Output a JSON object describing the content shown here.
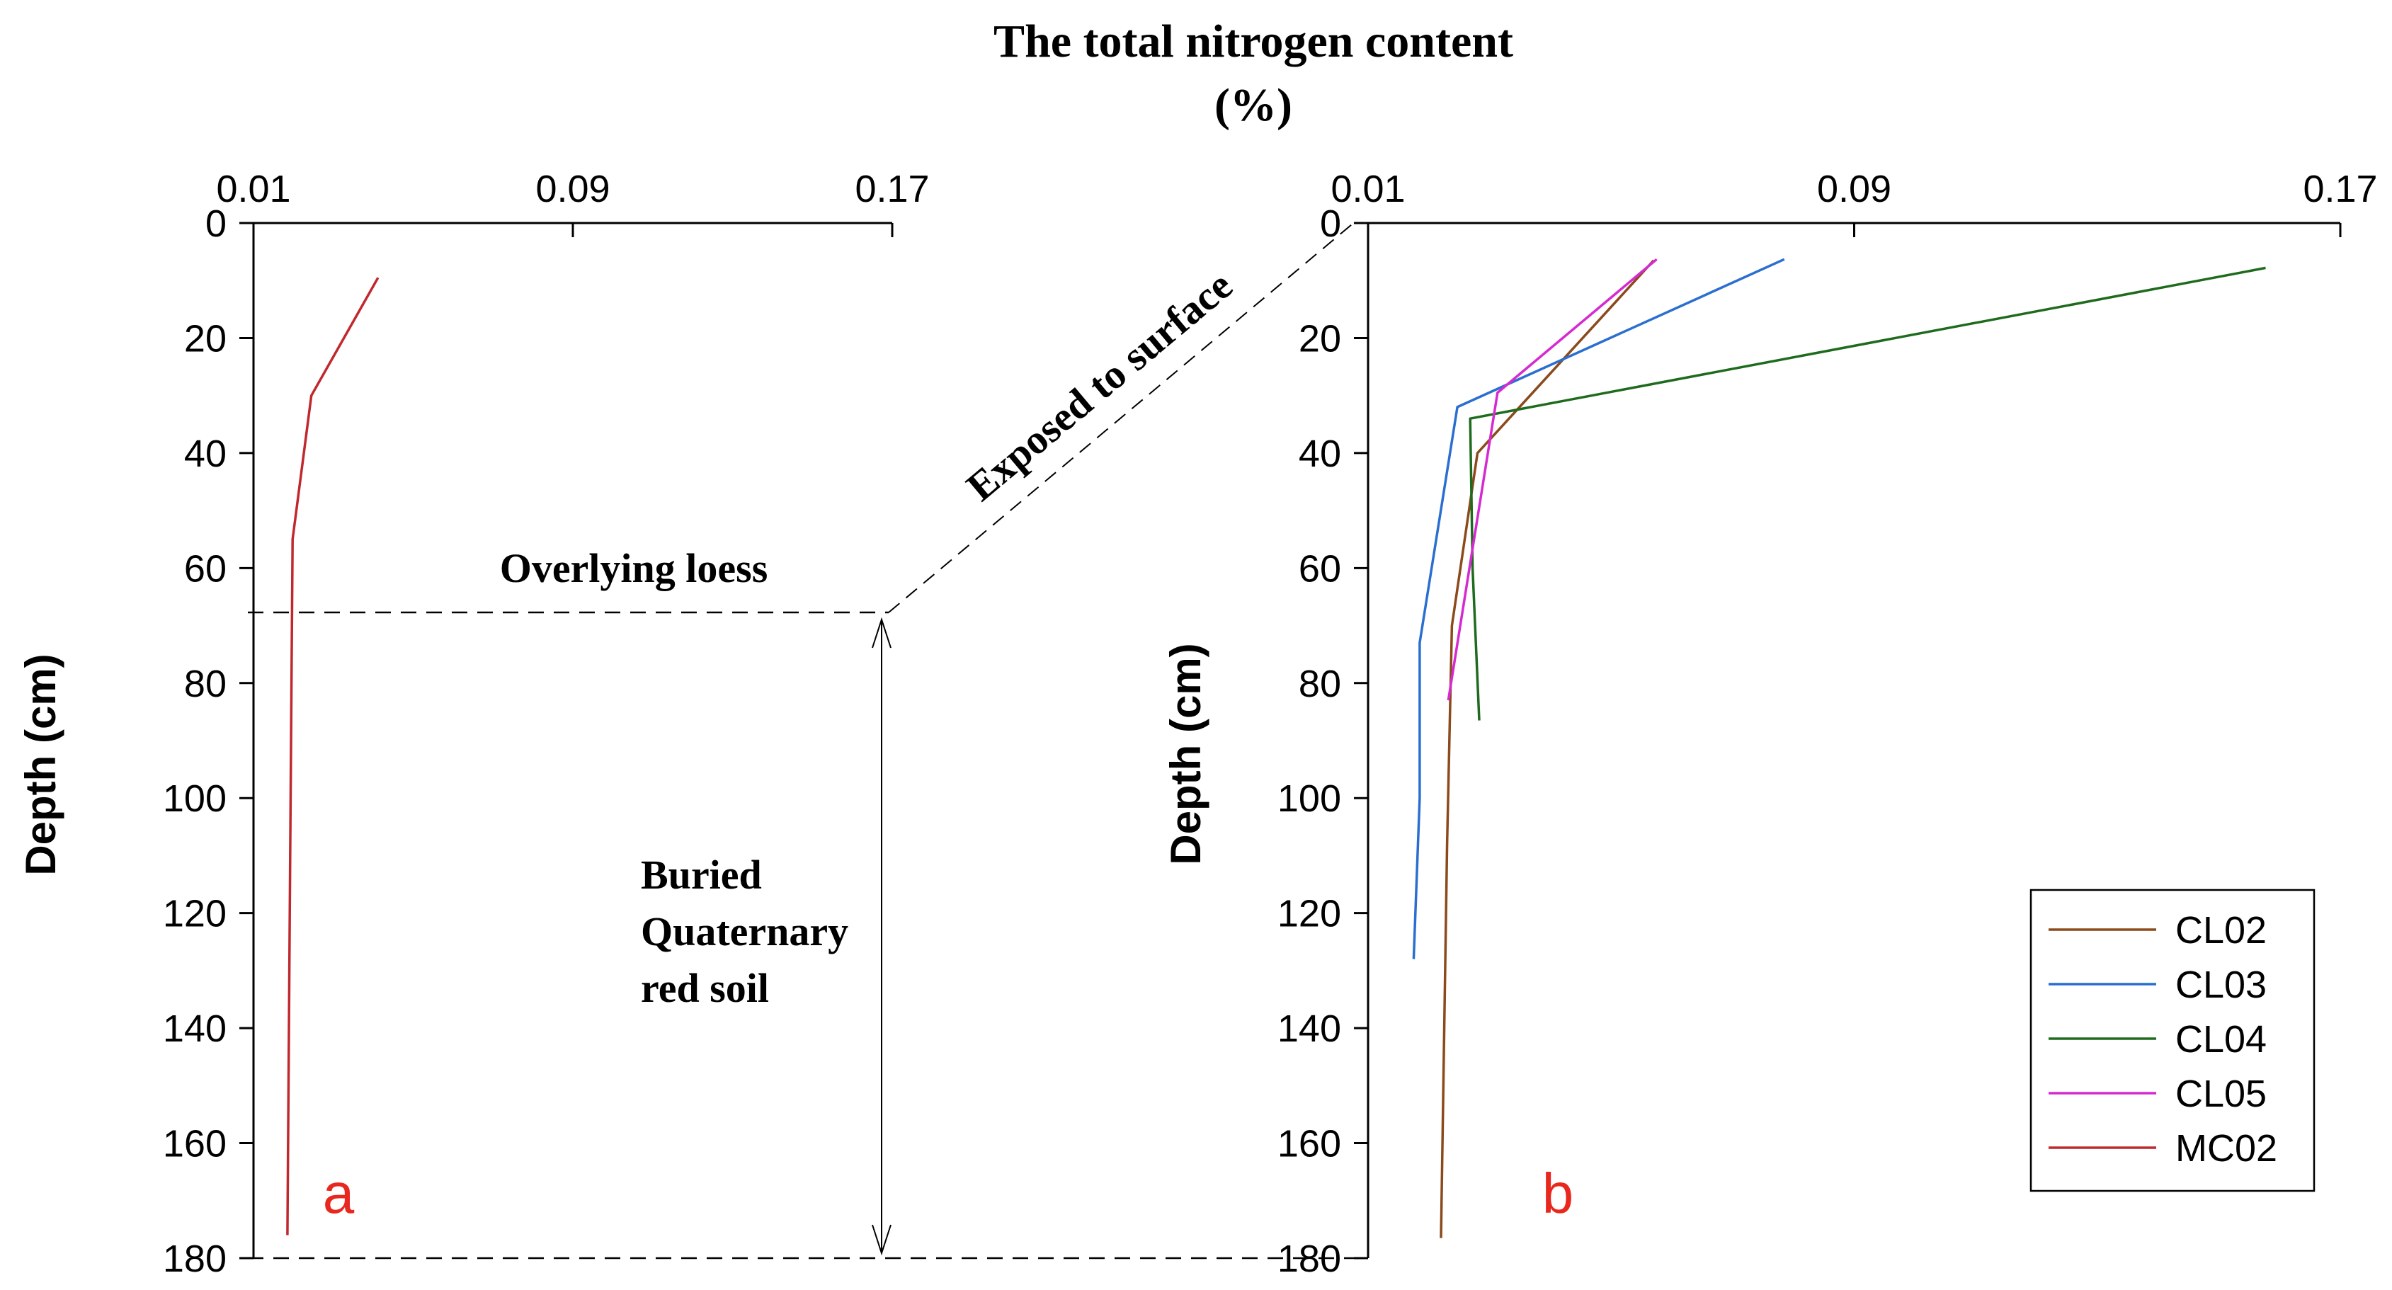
{
  "chart_data": {
    "type": "line",
    "title_line1": "The total nitrogen content",
    "title_line2": "(%)",
    "ylabel": "Depth (cm)",
    "x_ticks": [
      "0.01",
      "0.09",
      "0.17"
    ],
    "y_ticks": [
      "0",
      "20",
      "40",
      "60",
      "80",
      "100",
      "120",
      "140",
      "160",
      "180"
    ],
    "xlim": [
      0.01,
      0.17
    ],
    "ylim": [
      0,
      180
    ],
    "y_inverted": true,
    "x_axis_position": "top",
    "panels": [
      {
        "label": "a",
        "series": [
          {
            "name": "MC02",
            "color": "#c0282d",
            "x": [
              0.0412,
              0.0245,
              0.0198,
              0.0193,
              0.0185
            ],
            "y": [
              9.5,
              30,
              55,
              100,
              176
            ]
          }
        ]
      },
      {
        "label": "b",
        "series": [
          {
            "name": "CL02",
            "color": "#8b4a1c",
            "x": [
              0.057,
              0.028,
              0.0238,
              0.023,
              0.022
            ],
            "y": [
              6.5,
              40,
              70,
              108,
              176.5
            ]
          },
          {
            "name": "CL03",
            "color": "#2a6fd0",
            "x": [
              0.0785,
              0.0247,
              0.0185,
              0.0185,
              0.0175
            ],
            "y": [
              6.3,
              32,
              73,
              100,
              128
            ]
          },
          {
            "name": "CL04",
            "color": "#1e6b1e",
            "x": [
              0.1577,
              0.0268,
              0.0272,
              0.0283
            ],
            "y": [
              7.8,
              34,
              60,
              86.5
            ]
          },
          {
            "name": "CL05",
            "color": "#d62ad0",
            "x": [
              0.0575,
              0.0313,
              0.0232
            ],
            "y": [
              6.3,
              29.5,
              83
            ]
          }
        ]
      }
    ],
    "legend": [
      "CL02",
      "CL03",
      "CL04",
      "CL05",
      "MC02"
    ],
    "legend_position": "bottom-right",
    "annotations": {
      "overlying": "Overlying loess",
      "exposed": "Exposed to surface",
      "buried_line1": "Buried",
      "buried_line2": "Quaternary",
      "buried_line3": "red soil"
    }
  }
}
